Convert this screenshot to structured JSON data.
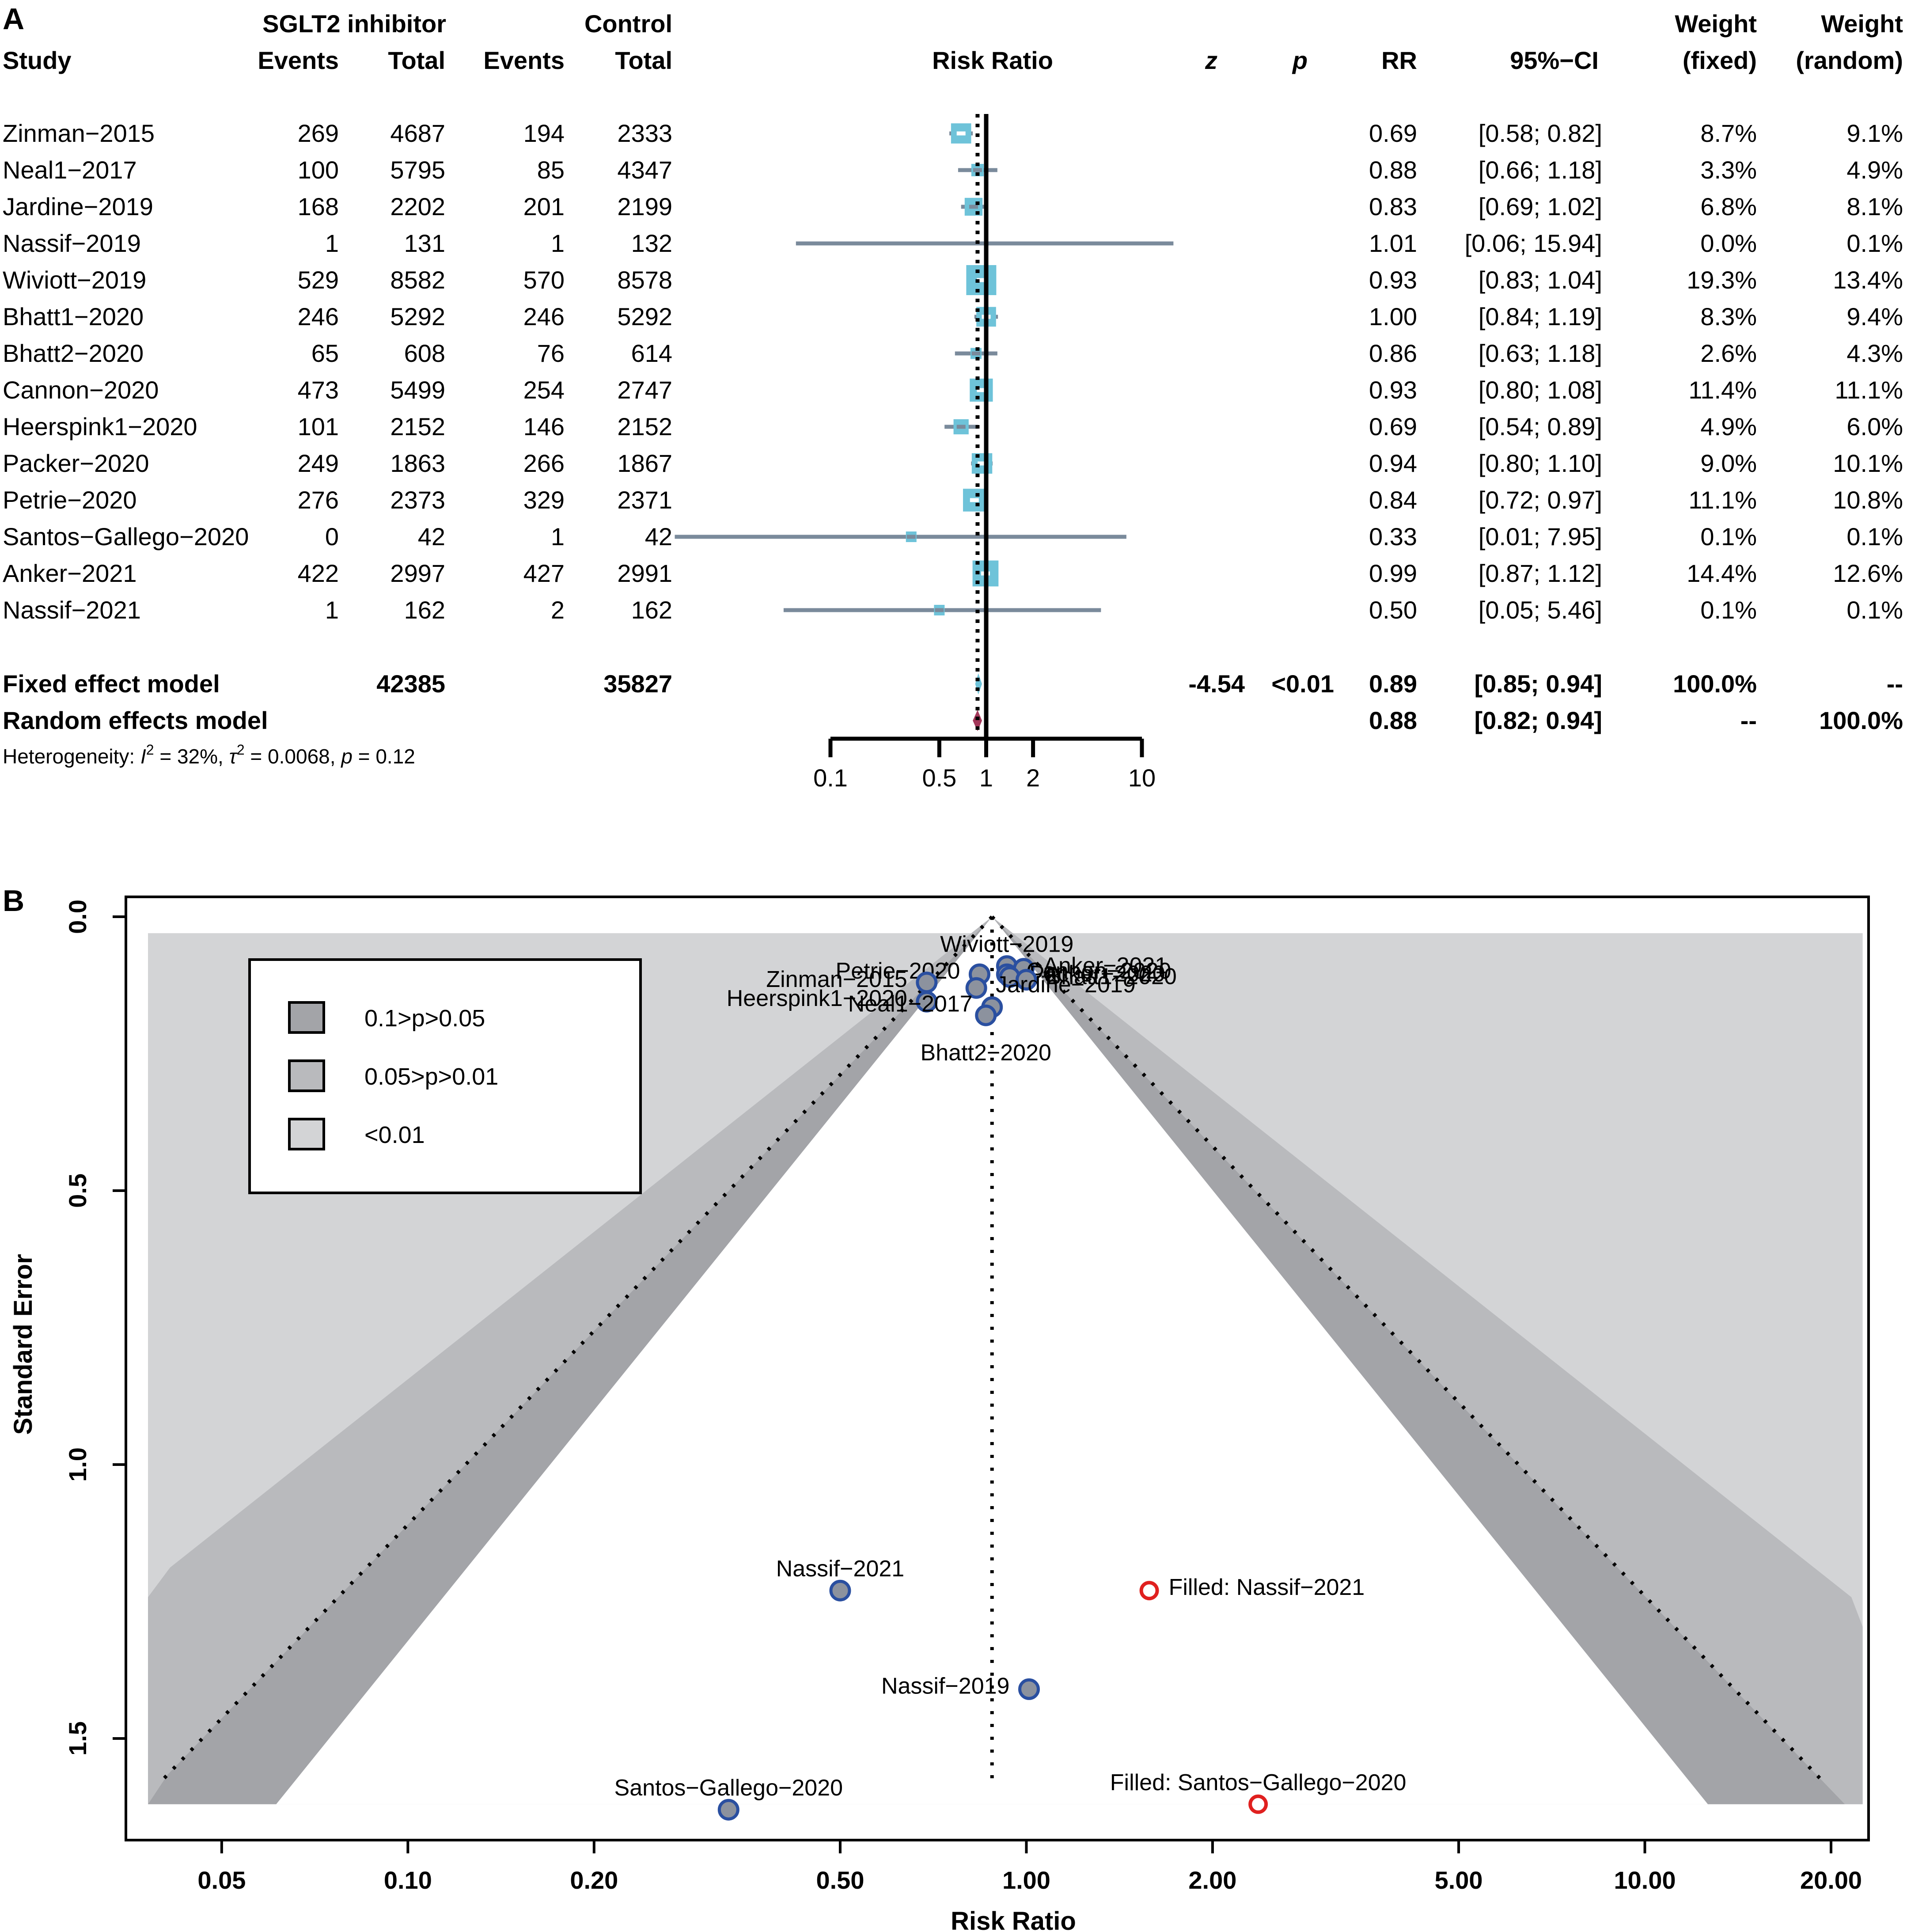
{
  "chart_data": [
    {
      "type": "forest",
      "panel_label": "A",
      "header": {
        "group1": "SGLT2 inhibitor",
        "group2": "Control",
        "study": "Study",
        "events": "Events",
        "total": "Total",
        "plot_title": "Risk Ratio",
        "z": "z",
        "p": "p",
        "rr": "RR",
        "ci": "95%−CI",
        "weight": "Weight",
        "fixed": "(fixed)",
        "random": "(random)"
      },
      "studies": [
        {
          "study": "Zinman−2015",
          "e1": "269",
          "n1": "4687",
          "e2": "194",
          "n2": "2333",
          "rr": 0.69,
          "lo": 0.58,
          "hi": 0.82,
          "rr_text": "0.69",
          "ci_text": "[0.58;  0.82]",
          "w_fixed": "8.7%",
          "w_random": "9.1%"
        },
        {
          "study": " Neal1−2017",
          "e1": "100",
          "n1": "5795",
          "e2": "85",
          "n2": "4347",
          "rr": 0.88,
          "lo": 0.66,
          "hi": 1.18,
          "rr_text": "0.88",
          "ci_text": "[0.66;  1.18]",
          "w_fixed": "3.3%",
          "w_random": "4.9%"
        },
        {
          "study": "Jardine−2019",
          "e1": "168",
          "n1": "2202",
          "e2": "201",
          "n2": "2199",
          "rr": 0.83,
          "lo": 0.69,
          "hi": 1.02,
          "rr_text": "0.83",
          "ci_text": "[0.69;  1.02]",
          "w_fixed": "6.8%",
          "w_random": "8.1%"
        },
        {
          "study": "Nassif−2019",
          "e1": "1",
          "n1": "131",
          "e2": "1",
          "n2": "132",
          "rr": 1.01,
          "lo": 0.06,
          "hi": 15.94,
          "rr_text": "1.01",
          "ci_text": "[0.06; 15.94]",
          "w_fixed": "0.0%",
          "w_random": "0.1%"
        },
        {
          "study": "Wiviott−2019",
          "e1": "529",
          "n1": "8582",
          "e2": "570",
          "n2": "8578",
          "rr": 0.93,
          "lo": 0.83,
          "hi": 1.04,
          "rr_text": "0.93",
          "ci_text": "[0.83;  1.04]",
          "w_fixed": "19.3%",
          "w_random": "13.4%"
        },
        {
          "study": "Bhatt1−2020",
          "e1": "246",
          "n1": "5292",
          "e2": "246",
          "n2": "5292",
          "rr": 1.0,
          "lo": 0.84,
          "hi": 1.19,
          "rr_text": "1.00",
          "ci_text": "[0.84;  1.19]",
          "w_fixed": "8.3%",
          "w_random": "9.4%"
        },
        {
          "study": "Bhatt2−2020",
          "e1": "65",
          "n1": "608",
          "e2": "76",
          "n2": "614",
          "rr": 0.86,
          "lo": 0.63,
          "hi": 1.18,
          "rr_text": "0.86",
          "ci_text": "[0.63;  1.18]",
          "w_fixed": "2.6%",
          "w_random": "4.3%"
        },
        {
          "study": "Cannon−2020",
          "e1": "473",
          "n1": "5499",
          "e2": "254",
          "n2": "2747",
          "rr": 0.93,
          "lo": 0.8,
          "hi": 1.08,
          "rr_text": "0.93",
          "ci_text": "[0.80;  1.08]",
          "w_fixed": "11.4%",
          "w_random": "11.1%"
        },
        {
          "study": "Heerspink1−2020",
          "e1": "101",
          "n1": "2152",
          "e2": "146",
          "n2": "2152",
          "rr": 0.69,
          "lo": 0.54,
          "hi": 0.89,
          "rr_text": "0.69",
          "ci_text": "[0.54;  0.89]",
          "w_fixed": "4.9%",
          "w_random": "6.0%"
        },
        {
          "study": "Packer−2020",
          "e1": "249",
          "n1": "1863",
          "e2": "266",
          "n2": "1867",
          "rr": 0.94,
          "lo": 0.8,
          "hi": 1.1,
          "rr_text": "0.94",
          "ci_text": "[0.80;  1.10]",
          "w_fixed": "9.0%",
          "w_random": "10.1%"
        },
        {
          "study": "Petrie−2020",
          "e1": "276",
          "n1": "2373",
          "e2": "329",
          "n2": "2371",
          "rr": 0.84,
          "lo": 0.72,
          "hi": 0.97,
          "rr_text": "0.84",
          "ci_text": "[0.72;  0.97]",
          "w_fixed": "11.1%",
          "w_random": "10.8%"
        },
        {
          "study": "Santos−Gallego−2020",
          "e1": "0",
          "n1": "42",
          "e2": "1",
          "n2": "42",
          "rr": 0.33,
          "lo": 0.01,
          "hi": 7.95,
          "rr_text": "0.33",
          "ci_text": "[0.01;  7.95]",
          "w_fixed": "0.1%",
          "w_random": "0.1%"
        },
        {
          "study": "Anker−2021",
          "e1": "422",
          "n1": "2997",
          "e2": "427",
          "n2": "2991",
          "rr": 0.99,
          "lo": 0.87,
          "hi": 1.12,
          "rr_text": "0.99",
          "ci_text": "[0.87;  1.12]",
          "w_fixed": "14.4%",
          "w_random": "12.6%"
        },
        {
          "study": "Nassif−2021",
          "e1": "1",
          "n1": "162",
          "e2": "2",
          "n2": "162",
          "rr": 0.5,
          "lo": 0.05,
          "hi": 5.46,
          "rr_text": "0.50",
          "ci_text": "[0.05;  5.46]",
          "w_fixed": "0.1%",
          "w_random": "0.1%"
        }
      ],
      "fixed": {
        "label": "Fixed effect model",
        "n1": "42385",
        "n2": "35827",
        "z": "-4.54",
        "p": "<0.01",
        "rr": 0.89,
        "lo": 0.85,
        "hi": 0.94,
        "rr_text": "0.89",
        "ci_text": "[0.85;  0.94]",
        "w_fixed": "100.0%",
        "w_random": "--"
      },
      "random": {
        "label": "Random effects model",
        "rr": 0.88,
        "lo": 0.82,
        "hi": 0.94,
        "rr_text": "0.88",
        "ci_text": "[0.82;  0.94]",
        "w_fixed": "--",
        "w_random": "100.0%"
      },
      "heterogeneity": {
        "prefix": "Heterogeneity: ",
        "i2_symbol": "I",
        "i2_sup": "2",
        "i2_value": " = 32%,  ",
        "tau_symbol": "τ",
        "tau_sup": "2",
        "tau_value": " = 0.0068, ",
        "p_symbol": "p",
        "p_value": " = 0.12"
      },
      "x_ticks": [
        {
          "value": 0.1,
          "label": "0.1"
        },
        {
          "value": 0.5,
          "label": "0.5"
        },
        {
          "value": 1,
          "label": "1"
        },
        {
          "value": 2,
          "label": "2"
        },
        {
          "value": 10,
          "label": "10"
        }
      ],
      "xlim": [
        0.1,
        10
      ],
      "colors": {
        "ci_line": "#7a8a9b",
        "box": "#6ec3d9",
        "diamond_random": "#a3385a",
        "diamond_fixed": "#6ec3d9"
      }
    },
    {
      "type": "funnel",
      "panel_label": "B",
      "xlabel": "Risk Ratio",
      "ylabel": "Standard Error",
      "x_scale": "log",
      "xlim": [
        0.035,
        23
      ],
      "ylim": [
        0,
        1.69
      ],
      "x_ticks": [
        {
          "value": 0.05,
          "label": "0.05"
        },
        {
          "value": 0.1,
          "label": "0.10"
        },
        {
          "value": 0.2,
          "label": "0.20"
        },
        {
          "value": 0.5,
          "label": "0.50"
        },
        {
          "value": 1,
          "label": "1.00"
        },
        {
          "value": 2,
          "label": "2.00"
        },
        {
          "value": 5,
          "label": "5.00"
        },
        {
          "value": 10,
          "label": "10.00"
        },
        {
          "value": 20,
          "label": "20.00"
        }
      ],
      "y_ticks": [
        {
          "value": 0,
          "label": "0.0"
        },
        {
          "value": 0.5,
          "label": "0.5"
        },
        {
          "value": 1.0,
          "label": "1.0"
        },
        {
          "value": 1.5,
          "label": "1.5"
        }
      ],
      "center_rr": 0.88,
      "contour_max_se": 1.62,
      "legend": {
        "position": "top-left",
        "items": [
          {
            "label": "0.1>p>0.05",
            "color": "#a3a4a8"
          },
          {
            "label": "0.05>p>0.01",
            "color": "#b9babd"
          },
          {
            "label": "<0.01",
            "color": "#d3d4d6"
          }
        ]
      },
      "points": [
        {
          "label": "Wiviott−2019",
          "rr": 0.93,
          "se": 0.09,
          "filled": false,
          "label_side": "above"
        },
        {
          "label": "Anker−2021",
          "rr": 0.99,
          "se": 0.095,
          "filled": false,
          "label_side": "right"
        },
        {
          "label": "Cannon−2020",
          "rr": 0.93,
          "se": 0.105,
          "filled": false,
          "label_side": "right"
        },
        {
          "label": "Packer−2020",
          "rr": 0.94,
          "se": 0.11,
          "filled": false,
          "label_side": "right"
        },
        {
          "label": "Petrie−2020",
          "rr": 0.84,
          "se": 0.105,
          "filled": false,
          "label_side": "left"
        },
        {
          "label": "Zinman−2015",
          "rr": 0.69,
          "se": 0.12,
          "filled": false,
          "label_side": "left"
        },
        {
          "label": "Bhatt1−2020",
          "rr": 1.0,
          "se": 0.115,
          "filled": false,
          "label_side": "right"
        },
        {
          "label": "Jardine−2019",
          "rr": 0.83,
          "se": 0.13,
          "filled": false,
          "label_side": "right"
        },
        {
          "label": "Heerspink1−2020",
          "rr": 0.69,
          "se": 0.155,
          "filled": false,
          "label_side": "left"
        },
        {
          "label": "Neal1−2017",
          "rr": 0.88,
          "se": 0.165,
          "filled": false,
          "label_side": "left"
        },
        {
          "label": "Bhatt2−2020",
          "rr": 0.86,
          "se": 0.18,
          "filled": false,
          "label_side": "below"
        },
        {
          "label": "Nassif−2021",
          "rr": 0.5,
          "se": 1.23,
          "filled": false,
          "label_side": "above"
        },
        {
          "label": "Nassif−2019",
          "rr": 1.01,
          "se": 1.41,
          "filled": false,
          "label_side": "left"
        },
        {
          "label": "Santos−Gallego−2020",
          "rr": 0.33,
          "se": 1.63,
          "filled": false,
          "label_side": "above"
        },
        {
          "label": "Filled: Nassif−2021",
          "rr": 1.58,
          "se": 1.23,
          "filled": true,
          "label_side": "right"
        },
        {
          "label": "Filled: Santos−Gallego−2020",
          "rr": 2.37,
          "se": 1.62,
          "filled": true,
          "label_side": "above"
        }
      ],
      "colors": {
        "point_fill": "#8c929e",
        "point_edge": "#2a4fa0",
        "filled_edge": "#e0201f"
      }
    }
  ]
}
